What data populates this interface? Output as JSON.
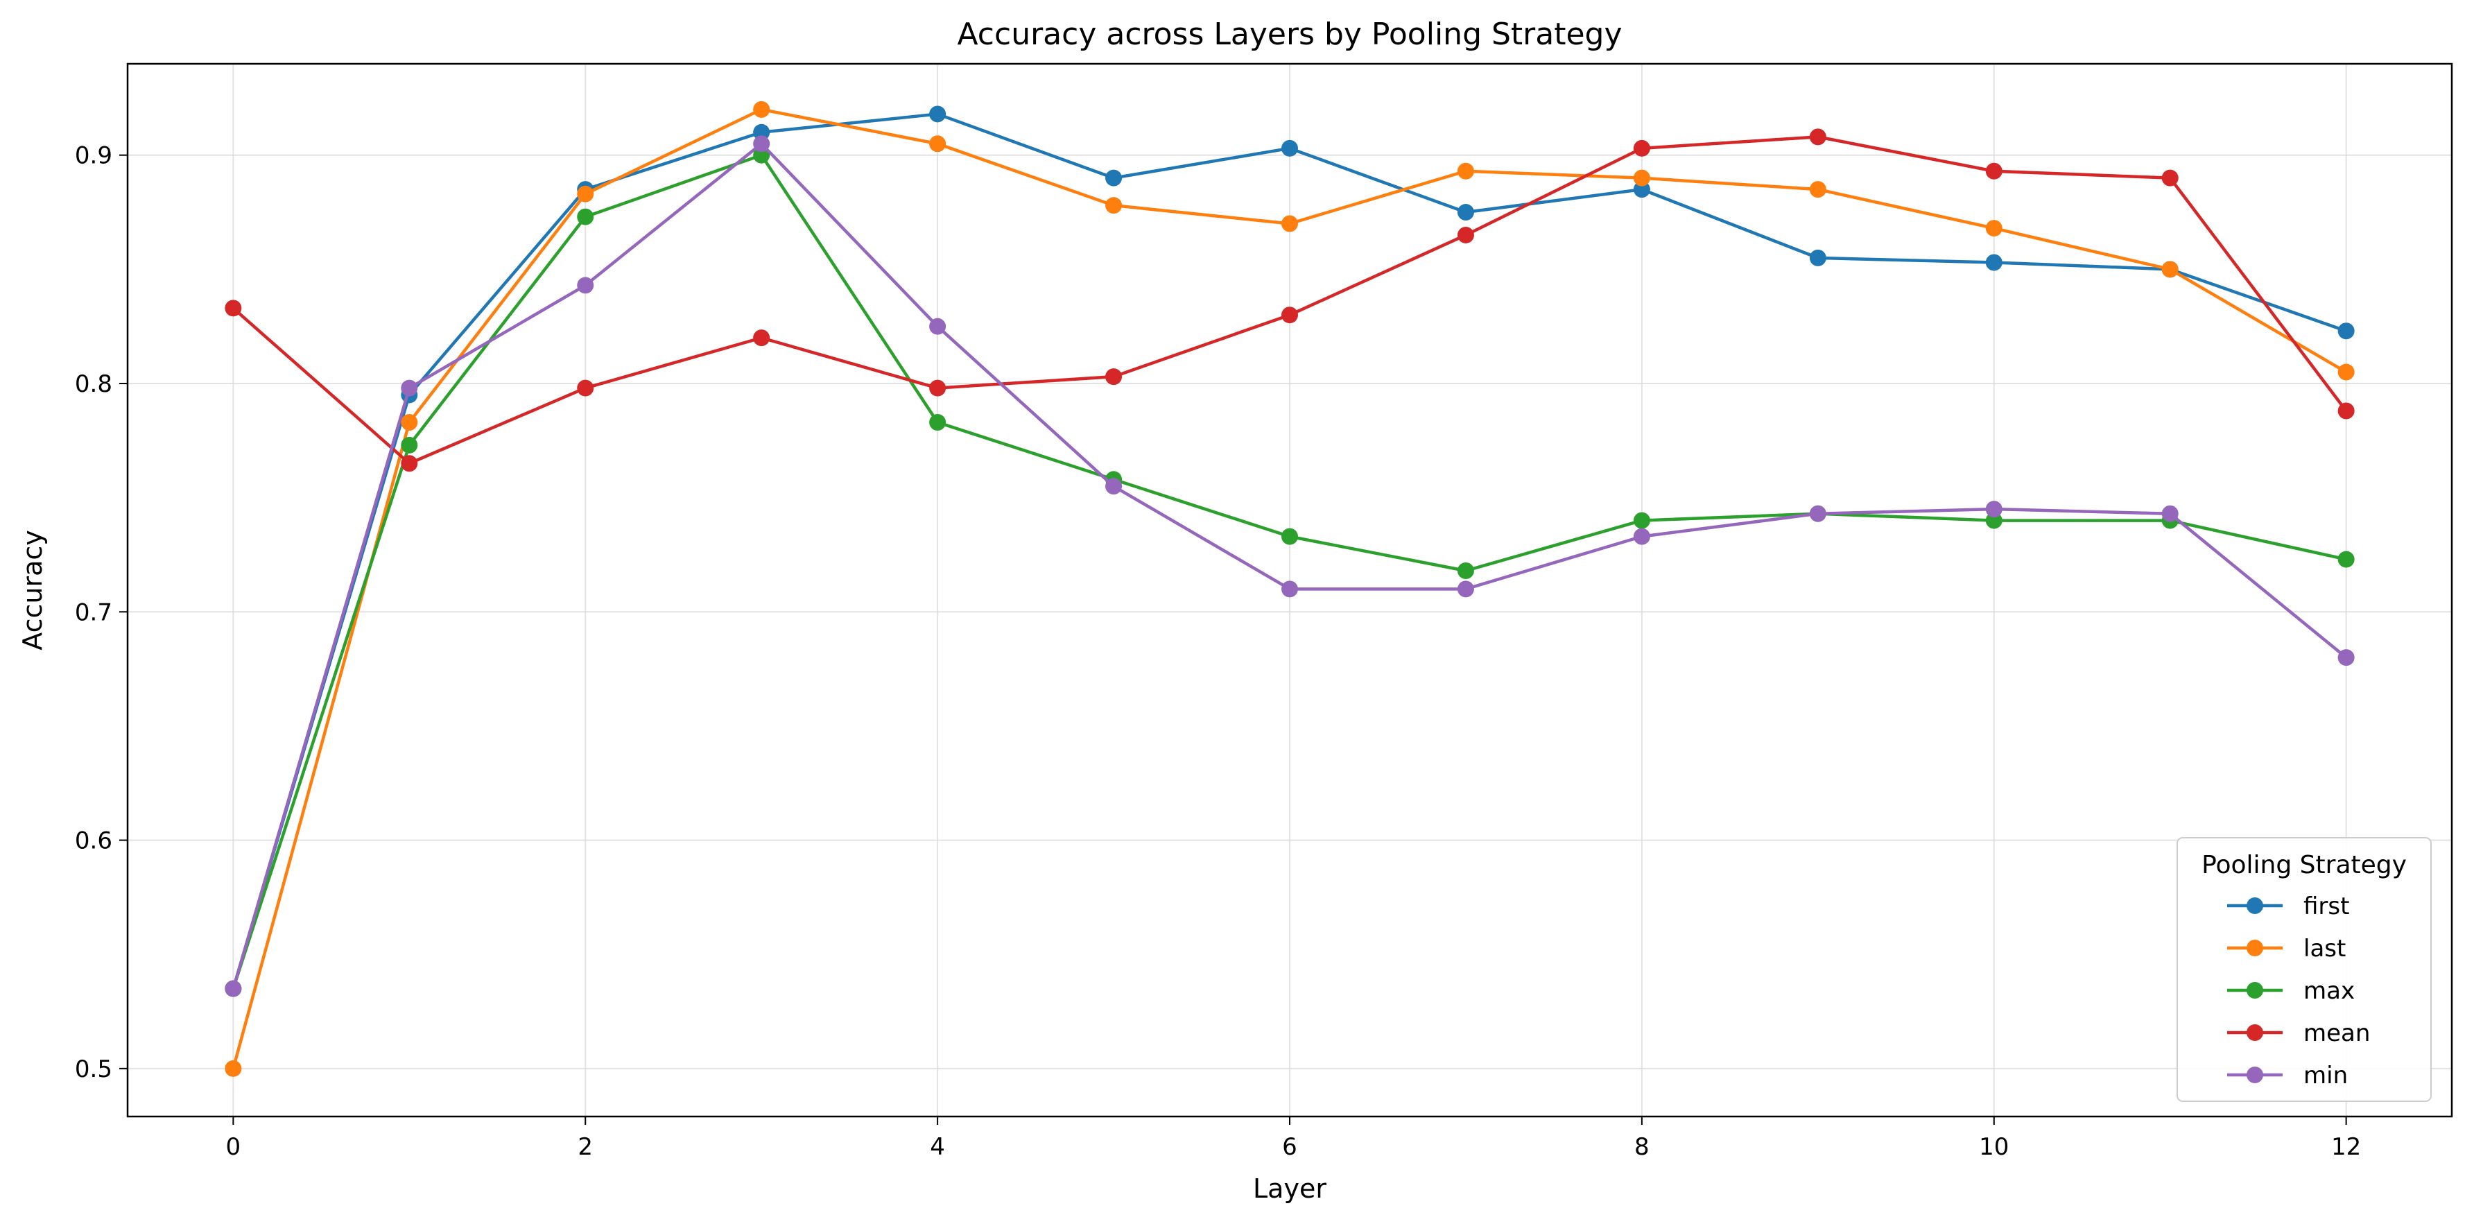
{
  "chart_data": {
    "type": "line",
    "title": "Accuracy across Layers by Pooling Strategy",
    "xlabel": "Layer",
    "ylabel": "Accuracy",
    "x": [
      0,
      1,
      2,
      3,
      4,
      5,
      6,
      7,
      8,
      9,
      10,
      11,
      12
    ],
    "xlim": [
      -0.6,
      12.6
    ],
    "ylim": [
      0.479,
      0.94
    ],
    "xticks": [
      0,
      2,
      4,
      6,
      8,
      10,
      12
    ],
    "yticks": [
      0.5,
      0.6,
      0.7,
      0.8,
      0.9
    ],
    "xtick_labels": [
      "0",
      "2",
      "4",
      "6",
      "8",
      "10",
      "12"
    ],
    "ytick_labels": [
      "0.5",
      "0.6",
      "0.7",
      "0.8",
      "0.9"
    ],
    "grid": true,
    "legend": {
      "title": "Pooling Strategy",
      "placement": "bottom-right"
    },
    "series": [
      {
        "name": "first",
        "color": "#1f77b4",
        "values": [
          0.535,
          0.795,
          0.885,
          0.91,
          0.918,
          0.89,
          0.903,
          0.875,
          0.885,
          0.855,
          0.853,
          0.85,
          0.823
        ]
      },
      {
        "name": "last",
        "color": "#ff7f0e",
        "values": [
          0.5,
          0.783,
          0.883,
          0.92,
          0.905,
          0.878,
          0.87,
          0.893,
          0.89,
          0.885,
          0.868,
          0.85,
          0.805
        ]
      },
      {
        "name": "max",
        "color": "#2ca02c",
        "values": [
          0.535,
          0.773,
          0.873,
          0.9,
          0.783,
          0.758,
          0.733,
          0.718,
          0.74,
          0.743,
          0.74,
          0.74,
          0.723
        ]
      },
      {
        "name": "mean",
        "color": "#d62728",
        "values": [
          0.833,
          0.765,
          0.798,
          0.82,
          0.798,
          0.803,
          0.83,
          0.865,
          0.903,
          0.908,
          0.893,
          0.89,
          0.788
        ]
      },
      {
        "name": "min",
        "color": "#9467bd",
        "values": [
          0.535,
          0.798,
          0.843,
          0.905,
          0.825,
          0.755,
          0.71,
          0.71,
          0.733,
          0.743,
          0.745,
          0.743,
          0.68
        ]
      }
    ]
  }
}
